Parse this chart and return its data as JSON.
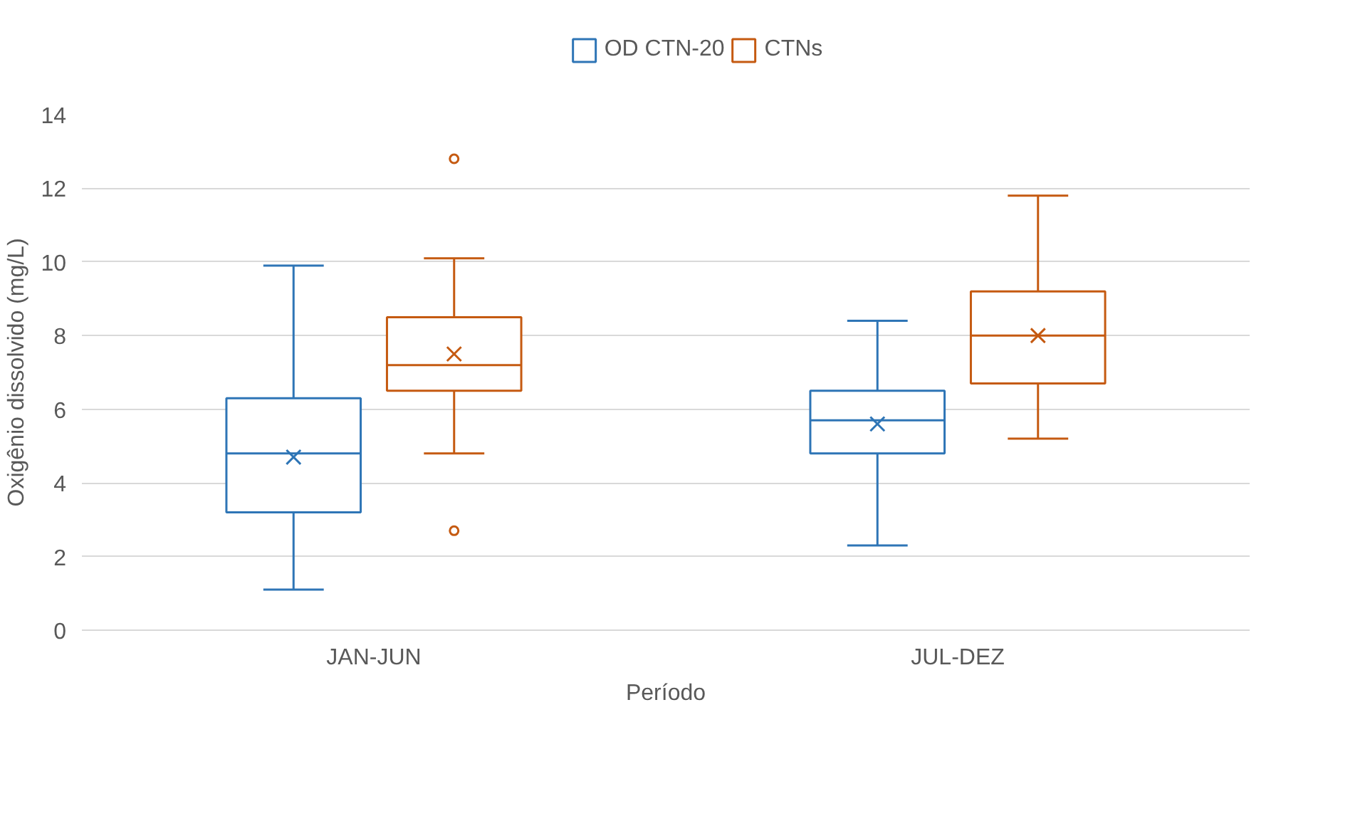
{
  "chart_data": {
    "type": "box",
    "xlabel": "Período",
    "ylabel": "Oxigênio dissolvido (mg/L)",
    "categories": [
      "JAN-JUN",
      "JUL-DEZ"
    ],
    "ylim": [
      0,
      14
    ],
    "yticks": [
      0,
      2,
      4,
      6,
      8,
      10,
      12,
      14
    ],
    "grid": "y",
    "legend": "top",
    "marker": "cross",
    "series": [
      {
        "name": "OD CTN-20",
        "color": "#2e75b6",
        "boxes": [
          {
            "low": 1.1,
            "q1": 3.2,
            "median": 4.8,
            "q3": 6.3,
            "high": 9.9,
            "mean": 4.7
          },
          {
            "low": 2.3,
            "q1": 4.8,
            "median": 5.7,
            "q3": 6.5,
            "high": 8.4,
            "mean": 5.6
          }
        ]
      },
      {
        "name": "CTNs",
        "color": "#c55a11",
        "boxes": [
          {
            "low": 4.8,
            "q1": 6.5,
            "median": 7.2,
            "q3": 8.5,
            "high": 10.1,
            "mean": 7.5,
            "outliers": [
              12.8,
              2.7
            ]
          },
          {
            "low": 5.2,
            "q1": 6.7,
            "median": 8.0,
            "q3": 9.2,
            "high": 11.8,
            "mean": 8.0
          }
        ]
      }
    ]
  }
}
